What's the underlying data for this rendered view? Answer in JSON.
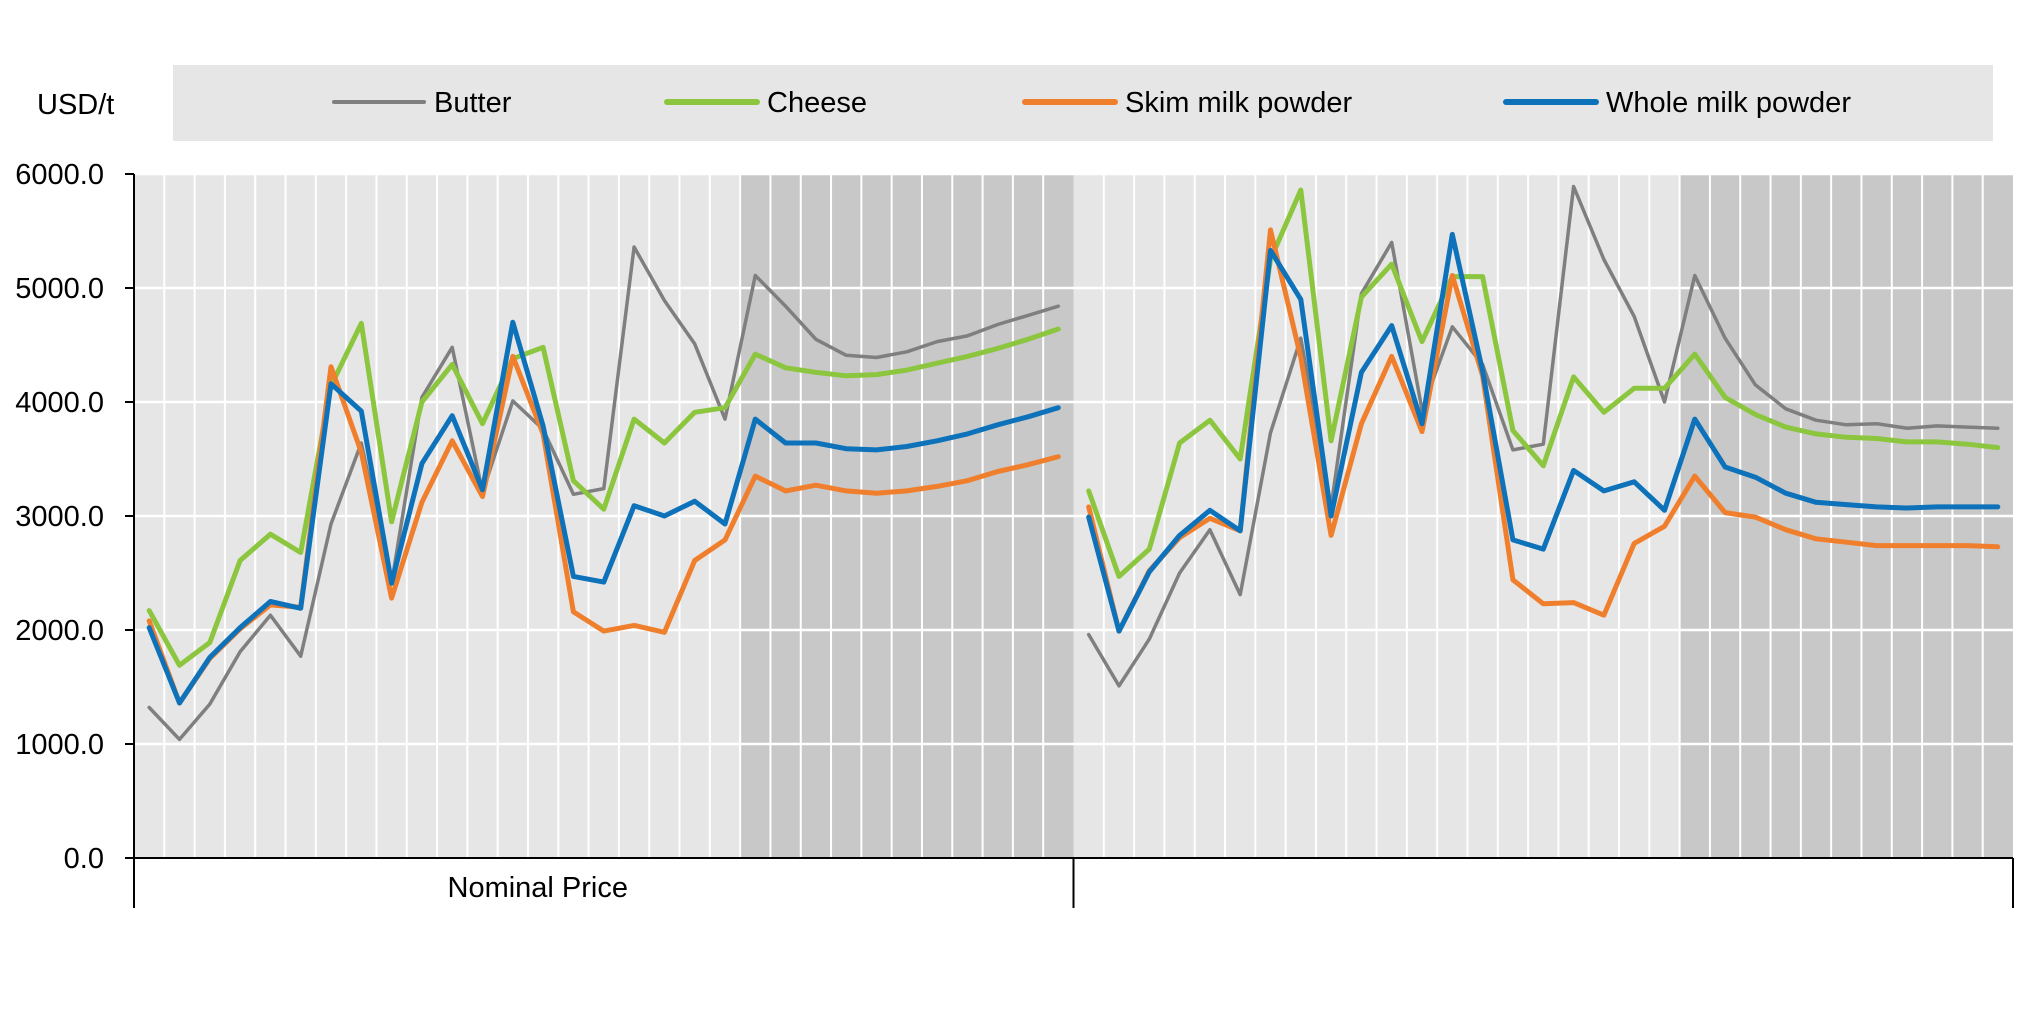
{
  "chart_data": {
    "type": "line",
    "title": "",
    "ylabel": "USD/t",
    "ylim": [
      0,
      6000
    ],
    "yticks": [
      0,
      1000,
      2000,
      3000,
      4000,
      5000,
      6000
    ],
    "ytick_labels": [
      "0.0",
      "1000.0",
      "2000.0",
      "3000.0",
      "4000.0",
      "5000.0",
      "6000.0"
    ],
    "grid": true,
    "legend_position": "top",
    "projection_shading_from_index": 20,
    "panels": [
      {
        "label": "Nominal Price",
        "series": [
          {
            "name": "Butter",
            "color": "#7f7f7f",
            "values": [
              1320,
              1040,
              1350,
              1810,
              2130,
              1770,
              2930,
              3640,
              2410,
              4040,
              4480,
              3210,
              4010,
              3760,
              3190,
              3240,
              5360,
              4890,
              4510,
              3850,
              5110,
              4840,
              4550,
              4410,
              4390,
              4440,
              4530,
              4580,
              4680,
              4760,
              4840
            ]
          },
          {
            "name": "Cheese",
            "color": "#8cc63f",
            "values": [
              2170,
              1690,
              1890,
              2610,
              2840,
              2680,
              4140,
              4690,
              2950,
              4000,
              4330,
              3810,
              4380,
              4480,
              3310,
              3060,
              3850,
              3640,
              3910,
              3950,
              4420,
              4300,
              4260,
              4230,
              4240,
              4280,
              4340,
              4400,
              4470,
              4550,
              4640
            ]
          },
          {
            "name": "Skim milk powder",
            "color": "#f07f2d",
            "values": [
              2080,
              1360,
              1750,
              2010,
              2220,
              2200,
              4310,
              3560,
              2280,
              3120,
              3660,
              3170,
              4400,
              3720,
              2160,
              1990,
              2040,
              1980,
              2610,
              2790,
              3350,
              3220,
              3270,
              3220,
              3200,
              3220,
              3260,
              3310,
              3390,
              3450,
              3520
            ]
          },
          {
            "name": "Whole milk powder",
            "color": "#0d72ba",
            "values": [
              2020,
              1360,
              1760,
              2020,
              2250,
              2190,
              4160,
              3920,
              2410,
              3460,
              3880,
              3230,
              4700,
              3790,
              2470,
              2420,
              3090,
              3000,
              3130,
              2930,
              3850,
              3640,
              3640,
              3590,
              3580,
              3610,
              3660,
              3720,
              3800,
              3870,
              3950
            ]
          }
        ]
      },
      {
        "label": "",
        "series": [
          {
            "name": "Butter",
            "color": "#7f7f7f",
            "values": [
              1960,
              1510,
              1920,
              2500,
              2880,
              2310,
              3730,
              4560,
              3080,
              4950,
              5400,
              3930,
              4660,
              4330,
              3580,
              3630,
              5890,
              5250,
              4750,
              4000,
              5110,
              4560,
              4150,
              3940,
              3840,
              3800,
              3810,
              3770,
              3790,
              3780,
              3770
            ]
          },
          {
            "name": "Cheese",
            "color": "#8cc63f",
            "values": [
              3220,
              2470,
              2710,
              3640,
              3840,
              3500,
              5250,
              5860,
              3660,
              4920,
              5210,
              4530,
              5100,
              5100,
              3750,
              3440,
              4220,
              3910,
              4120,
              4120,
              4420,
              4040,
              3890,
              3780,
              3720,
              3690,
              3680,
              3650,
              3650,
              3630,
              3600
            ]
          },
          {
            "name": "Skim milk powder",
            "color": "#f07f2d",
            "values": [
              3080,
              1990,
              2520,
              2810,
              2980,
              2870,
              5510,
              4390,
              2830,
              3810,
              4400,
              3740,
              5110,
              4230,
              2440,
              2230,
              2240,
              2130,
              2760,
              2910,
              3350,
              3030,
              2990,
              2880,
              2800,
              2770,
              2740,
              2740,
              2740,
              2740,
              2730
            ]
          },
          {
            "name": "Whole milk powder",
            "color": "#0d72ba",
            "values": [
              2990,
              1990,
              2510,
              2830,
              3050,
              2870,
              5330,
              4900,
              3000,
              4260,
              4670,
              3810,
              5470,
              4270,
              2790,
              2710,
              3400,
              3220,
              3300,
              3050,
              3850,
              3430,
              3340,
              3200,
              3120,
              3100,
              3080,
              3070,
              3080,
              3080,
              3080
            ]
          }
        ]
      }
    ]
  }
}
